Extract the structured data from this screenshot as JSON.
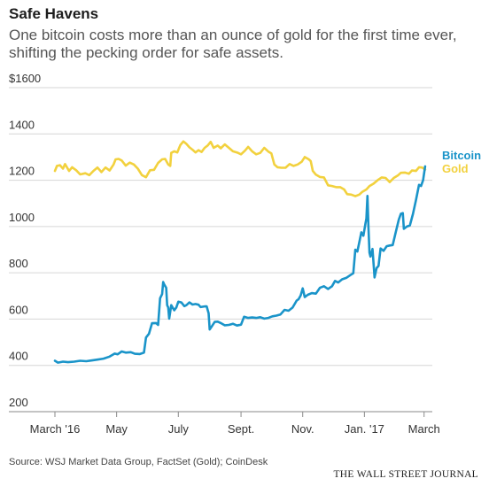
{
  "header": {
    "title": "Safe Havens",
    "subtitle": "One bitcoin costs more than an ounce of gold for the first time ever, shifting the pecking order for safe assets."
  },
  "footer": {
    "source": "Source: WSJ Market Data Group, FactSet (Gold); CoinDesk",
    "brand": "THE WALL STREET JOURNAL"
  },
  "chart_data": {
    "type": "line",
    "title": "Safe Havens",
    "ylim": [
      200,
      1600
    ],
    "xlim": [
      "2016-03-01",
      "2017-03-03"
    ],
    "y_ticks": [
      200,
      400,
      600,
      800,
      1000,
      1200,
      1400,
      1600
    ],
    "y_tick_labels": [
      "200",
      "400",
      "600",
      "800",
      "1000",
      "1200",
      "1400",
      "$1600"
    ],
    "x_ticks": [
      {
        "date": "2016-03-01",
        "label": "March '16"
      },
      {
        "date": "2016-05-01",
        "label": "May"
      },
      {
        "date": "2016-07-01",
        "label": "July"
      },
      {
        "date": "2016-09-01",
        "label": "Sept."
      },
      {
        "date": "2016-11-01",
        "label": "Nov."
      },
      {
        "date": "2017-01-01",
        "label": "Jan. '17"
      },
      {
        "date": "2017-03-01",
        "label": "March"
      }
    ],
    "grid": true,
    "legend": "end-of-line labels",
    "series": [
      {
        "name": "Bitcoin",
        "color": "#1a94c9",
        "points": [
          [
            "2016-03-01",
            420
          ],
          [
            "2016-03-04",
            412
          ],
          [
            "2016-03-09",
            416
          ],
          [
            "2016-03-14",
            414
          ],
          [
            "2016-03-20",
            416
          ],
          [
            "2016-03-26",
            420
          ],
          [
            "2016-04-01",
            418
          ],
          [
            "2016-04-06",
            421
          ],
          [
            "2016-04-12",
            425
          ],
          [
            "2016-04-18",
            429
          ],
          [
            "2016-04-24",
            438
          ],
          [
            "2016-04-29",
            451
          ],
          [
            "2016-05-02",
            448
          ],
          [
            "2016-05-06",
            460
          ],
          [
            "2016-05-10",
            455
          ],
          [
            "2016-05-15",
            457
          ],
          [
            "2016-05-19",
            450
          ],
          [
            "2016-05-24",
            449
          ],
          [
            "2016-05-28",
            455
          ],
          [
            "2016-05-30",
            520
          ],
          [
            "2016-06-02",
            537
          ],
          [
            "2016-06-05",
            582
          ],
          [
            "2016-06-09",
            583
          ],
          [
            "2016-06-11",
            575
          ],
          [
            "2016-06-13",
            690
          ],
          [
            "2016-06-15",
            708
          ],
          [
            "2016-06-16",
            760
          ],
          [
            "2016-06-17",
            750
          ],
          [
            "2016-06-19",
            735
          ],
          [
            "2016-06-20",
            660
          ],
          [
            "2016-06-21",
            650
          ],
          [
            "2016-06-22",
            602
          ],
          [
            "2016-06-24",
            660
          ],
          [
            "2016-06-27",
            638
          ],
          [
            "2016-06-29",
            650
          ],
          [
            "2016-07-01",
            675
          ],
          [
            "2016-07-04",
            672
          ],
          [
            "2016-07-07",
            656
          ],
          [
            "2016-07-09",
            660
          ],
          [
            "2016-07-12",
            672
          ],
          [
            "2016-07-15",
            663
          ],
          [
            "2016-07-18",
            665
          ],
          [
            "2016-07-21",
            662
          ],
          [
            "2016-07-23",
            652
          ],
          [
            "2016-07-27",
            655
          ],
          [
            "2016-07-29",
            655
          ],
          [
            "2016-07-31",
            625
          ],
          [
            "2016-08-01",
            555
          ],
          [
            "2016-08-03",
            568
          ],
          [
            "2016-08-06",
            588
          ],
          [
            "2016-08-09",
            589
          ],
          [
            "2016-08-12",
            583
          ],
          [
            "2016-08-16",
            573
          ],
          [
            "2016-08-20",
            575
          ],
          [
            "2016-08-24",
            580
          ],
          [
            "2016-08-28",
            572
          ],
          [
            "2016-09-01",
            576
          ],
          [
            "2016-09-04",
            610
          ],
          [
            "2016-09-08",
            605
          ],
          [
            "2016-09-12",
            607
          ],
          [
            "2016-09-16",
            605
          ],
          [
            "2016-09-20",
            608
          ],
          [
            "2016-09-24",
            602
          ],
          [
            "2016-09-28",
            605
          ],
          [
            "2016-10-02",
            612
          ],
          [
            "2016-10-06",
            615
          ],
          [
            "2016-10-10",
            620
          ],
          [
            "2016-10-14",
            640
          ],
          [
            "2016-10-18",
            636
          ],
          [
            "2016-10-22",
            650
          ],
          [
            "2016-10-26",
            680
          ],
          [
            "2016-10-28",
            686
          ],
          [
            "2016-10-30",
            702
          ],
          [
            "2016-11-01",
            733
          ],
          [
            "2016-11-03",
            695
          ],
          [
            "2016-11-06",
            705
          ],
          [
            "2016-11-10",
            712
          ],
          [
            "2016-11-14",
            710
          ],
          [
            "2016-11-18",
            735
          ],
          [
            "2016-11-22",
            742
          ],
          [
            "2016-11-26",
            730
          ],
          [
            "2016-11-30",
            742
          ],
          [
            "2016-12-03",
            765
          ],
          [
            "2016-12-06",
            758
          ],
          [
            "2016-12-10",
            772
          ],
          [
            "2016-12-14",
            778
          ],
          [
            "2016-12-18",
            790
          ],
          [
            "2016-12-21",
            798
          ],
          [
            "2016-12-23",
            900
          ],
          [
            "2016-12-25",
            892
          ],
          [
            "2016-12-27",
            932
          ],
          [
            "2016-12-29",
            975
          ],
          [
            "2016-12-31",
            960
          ],
          [
            "2017-01-02",
            1012
          ],
          [
            "2017-01-03",
            1035
          ],
          [
            "2017-01-04",
            1132
          ],
          [
            "2017-01-05",
            998
          ],
          [
            "2017-01-06",
            887
          ],
          [
            "2017-01-07",
            870
          ],
          [
            "2017-01-09",
            903
          ],
          [
            "2017-01-11",
            780
          ],
          [
            "2017-01-13",
            820
          ],
          [
            "2017-01-15",
            830
          ],
          [
            "2017-01-17",
            905
          ],
          [
            "2017-01-20",
            895
          ],
          [
            "2017-01-23",
            915
          ],
          [
            "2017-01-26",
            918
          ],
          [
            "2017-01-29",
            920
          ],
          [
            "2017-02-01",
            975
          ],
          [
            "2017-02-04",
            1030
          ],
          [
            "2017-02-06",
            1055
          ],
          [
            "2017-02-08",
            1058
          ],
          [
            "2017-02-09",
            990
          ],
          [
            "2017-02-12",
            1000
          ],
          [
            "2017-02-15",
            1005
          ],
          [
            "2017-02-18",
            1055
          ],
          [
            "2017-02-21",
            1115
          ],
          [
            "2017-02-24",
            1180
          ],
          [
            "2017-02-26",
            1175
          ],
          [
            "2017-02-28",
            1200
          ],
          [
            "2017-03-02",
            1260
          ]
        ]
      },
      {
        "name": "Gold",
        "color": "#f2d13e",
        "points": [
          [
            "2016-03-01",
            1240
          ],
          [
            "2016-03-03",
            1262
          ],
          [
            "2016-03-06",
            1265
          ],
          [
            "2016-03-09",
            1250
          ],
          [
            "2016-03-11",
            1270
          ],
          [
            "2016-03-15",
            1240
          ],
          [
            "2016-03-18",
            1256
          ],
          [
            "2016-03-22",
            1243
          ],
          [
            "2016-03-26",
            1225
          ],
          [
            "2016-03-31",
            1230
          ],
          [
            "2016-04-04",
            1222
          ],
          [
            "2016-04-08",
            1240
          ],
          [
            "2016-04-12",
            1255
          ],
          [
            "2016-04-16",
            1235
          ],
          [
            "2016-04-20",
            1255
          ],
          [
            "2016-04-24",
            1242
          ],
          [
            "2016-04-28",
            1268
          ],
          [
            "2016-04-30",
            1290
          ],
          [
            "2016-05-03",
            1292
          ],
          [
            "2016-05-06",
            1285
          ],
          [
            "2016-05-10",
            1263
          ],
          [
            "2016-05-14",
            1276
          ],
          [
            "2016-05-18",
            1268
          ],
          [
            "2016-05-22",
            1250
          ],
          [
            "2016-05-26",
            1222
          ],
          [
            "2016-05-30",
            1213
          ],
          [
            "2016-06-03",
            1243
          ],
          [
            "2016-06-07",
            1245
          ],
          [
            "2016-06-11",
            1275
          ],
          [
            "2016-06-15",
            1290
          ],
          [
            "2016-06-18",
            1292
          ],
          [
            "2016-06-21",
            1268
          ],
          [
            "2016-06-23",
            1262
          ],
          [
            "2016-06-24",
            1318
          ],
          [
            "2016-06-27",
            1325
          ],
          [
            "2016-06-30",
            1320
          ],
          [
            "2016-07-03",
            1352
          ],
          [
            "2016-07-06",
            1368
          ],
          [
            "2016-07-09",
            1357
          ],
          [
            "2016-07-12",
            1342
          ],
          [
            "2016-07-15",
            1332
          ],
          [
            "2016-07-18",
            1320
          ],
          [
            "2016-07-21",
            1330
          ],
          [
            "2016-07-24",
            1322
          ],
          [
            "2016-07-27",
            1340
          ],
          [
            "2016-07-30",
            1350
          ],
          [
            "2016-08-02",
            1366
          ],
          [
            "2016-08-05",
            1340
          ],
          [
            "2016-08-09",
            1350
          ],
          [
            "2016-08-12",
            1338
          ],
          [
            "2016-08-16",
            1355
          ],
          [
            "2016-08-20",
            1340
          ],
          [
            "2016-08-24",
            1325
          ],
          [
            "2016-08-28",
            1320
          ],
          [
            "2016-09-01",
            1312
          ],
          [
            "2016-09-05",
            1328
          ],
          [
            "2016-09-08",
            1344
          ],
          [
            "2016-09-12",
            1325
          ],
          [
            "2016-09-16",
            1312
          ],
          [
            "2016-09-20",
            1318
          ],
          [
            "2016-09-24",
            1340
          ],
          [
            "2016-09-28",
            1324
          ],
          [
            "2016-10-01",
            1316
          ],
          [
            "2016-10-04",
            1268
          ],
          [
            "2016-10-07",
            1256
          ],
          [
            "2016-10-11",
            1254
          ],
          [
            "2016-10-15",
            1254
          ],
          [
            "2016-10-19",
            1270
          ],
          [
            "2016-10-23",
            1262
          ],
          [
            "2016-10-27",
            1268
          ],
          [
            "2016-10-31",
            1280
          ],
          [
            "2016-11-03",
            1300
          ],
          [
            "2016-11-07",
            1290
          ],
          [
            "2016-11-09",
            1282
          ],
          [
            "2016-11-11",
            1240
          ],
          [
            "2016-11-14",
            1224
          ],
          [
            "2016-11-18",
            1214
          ],
          [
            "2016-11-22",
            1212
          ],
          [
            "2016-11-26",
            1178
          ],
          [
            "2016-11-30",
            1175
          ],
          [
            "2016-12-04",
            1170
          ],
          [
            "2016-12-08",
            1170
          ],
          [
            "2016-12-12",
            1160
          ],
          [
            "2016-12-15",
            1140
          ],
          [
            "2016-12-19",
            1138
          ],
          [
            "2016-12-23",
            1131
          ],
          [
            "2016-12-27",
            1138
          ],
          [
            "2016-12-30",
            1150
          ],
          [
            "2017-01-03",
            1160
          ],
          [
            "2017-01-06",
            1175
          ],
          [
            "2017-01-10",
            1185
          ],
          [
            "2017-01-14",
            1200
          ],
          [
            "2017-01-18",
            1212
          ],
          [
            "2017-01-22",
            1210
          ],
          [
            "2017-01-26",
            1192
          ],
          [
            "2017-01-30",
            1210
          ],
          [
            "2017-02-03",
            1220
          ],
          [
            "2017-02-06",
            1232
          ],
          [
            "2017-02-10",
            1233
          ],
          [
            "2017-02-14",
            1228
          ],
          [
            "2017-02-17",
            1242
          ],
          [
            "2017-02-21",
            1240
          ],
          [
            "2017-02-24",
            1256
          ],
          [
            "2017-02-27",
            1255
          ],
          [
            "2017-03-02",
            1246
          ]
        ]
      }
    ]
  }
}
